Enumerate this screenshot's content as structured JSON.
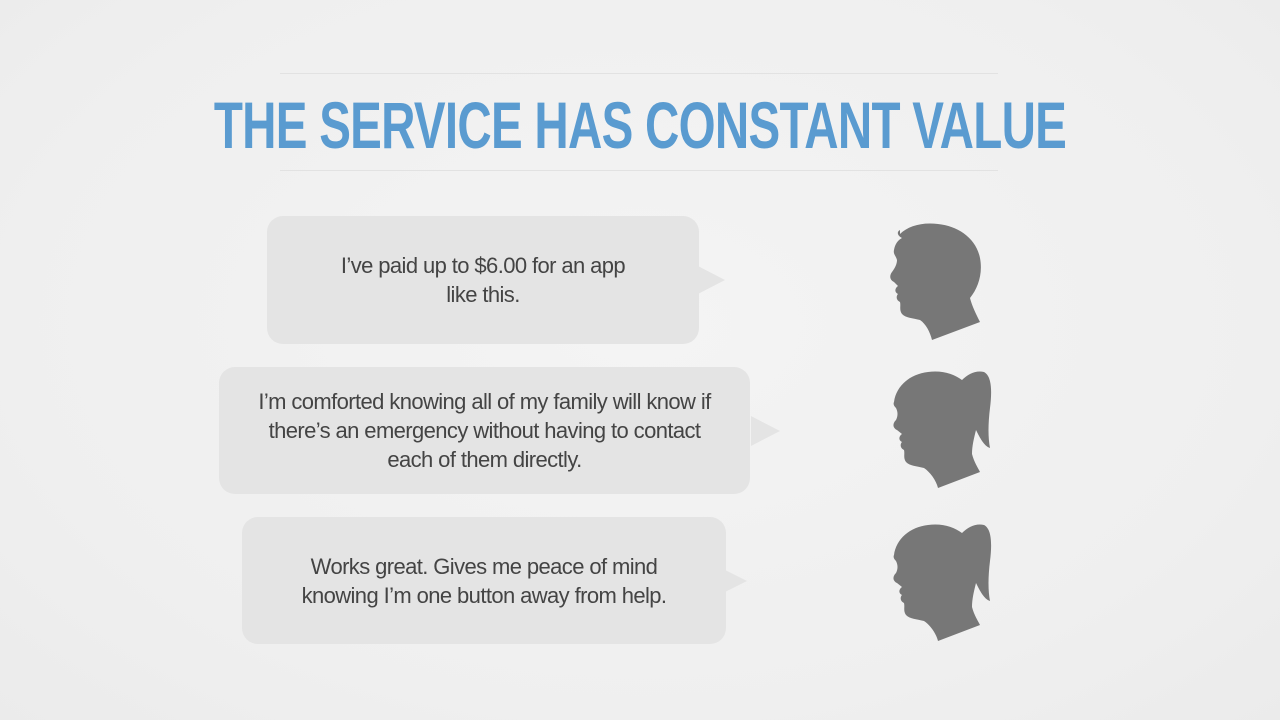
{
  "slide": {
    "title": "The Service Has Constant Value",
    "accent_color": "#5a9bd0",
    "text_color": "#444444",
    "bubble_color": "#e4e4e4",
    "silhouette_color": "#777777"
  },
  "testimonials": [
    {
      "quote": "I’ve paid up to $6.00 for an app like this.",
      "icon": "man-silhouette-icon"
    },
    {
      "quote": "I’m comforted knowing all of my family will know if there’s an emergency without having to contact each of them directly.",
      "icon": "woman-silhouette-icon"
    },
    {
      "quote": "Works great. Gives me peace of mind knowing I’m one button away from help.",
      "icon": "woman-silhouette-icon"
    }
  ]
}
